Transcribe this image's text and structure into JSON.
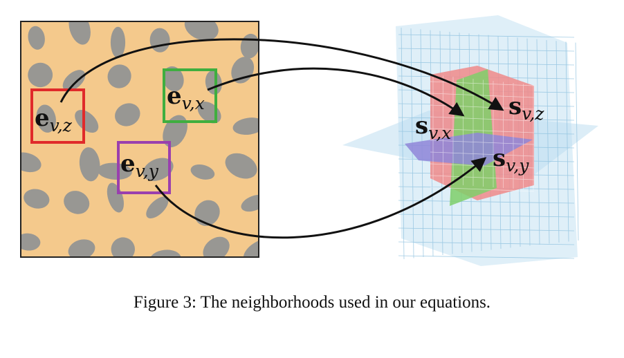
{
  "figure": {
    "caption": "Figure 3: The neighborhoods used in our equations.",
    "texture_labels": {
      "z": {
        "sym": "e",
        "sub": "v,z"
      },
      "x": {
        "sym": "e",
        "sub": "v,x"
      },
      "y": {
        "sym": "e",
        "sub": "v,y"
      }
    },
    "slice_labels": {
      "x": {
        "sym": "s",
        "sub": "v,x"
      },
      "z": {
        "sym": "s",
        "sub": "v,z"
      },
      "y": {
        "sym": "s",
        "sub": "v,y"
      }
    },
    "colors": {
      "box_z": "#e02a2a",
      "box_x": "#3fae3f",
      "box_y": "#9a3fae",
      "plane_z": "#f08a8a",
      "plane_x": "#7fcf6a",
      "plane_y": "#8f86d8",
      "plane_bg": "#b9dcef",
      "texture_base": "#f4c98c",
      "texture_spot": "#7f8996"
    }
  }
}
